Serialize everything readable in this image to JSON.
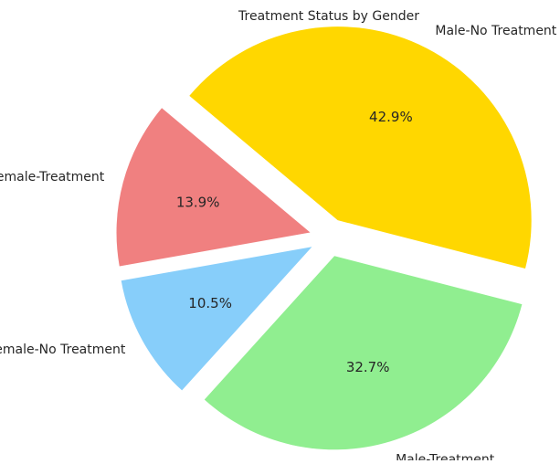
{
  "chart_data": {
    "type": "pie",
    "title": "Treatment Status by Gender",
    "slices": [
      {
        "label": "Female-Treatment",
        "value": 13.9,
        "display": "13.9%",
        "color": "#F08080",
        "exploded": true
      },
      {
        "label": "Female-No Treatment",
        "value": 10.5,
        "display": "10.5%",
        "color": "#87CEFA",
        "exploded": true
      },
      {
        "label": "Male-Treatment",
        "value": 32.7,
        "display": "32.7%",
        "color": "#90EE90",
        "exploded": true
      },
      {
        "label": "Male-No Treatment",
        "value": 42.9,
        "display": "42.9%",
        "color": "#FFD700",
        "exploded": true
      }
    ],
    "start_angle_deg": 140,
    "direction": "counterclockwise",
    "autopct": "%1.1f%%",
    "legend": "none"
  }
}
